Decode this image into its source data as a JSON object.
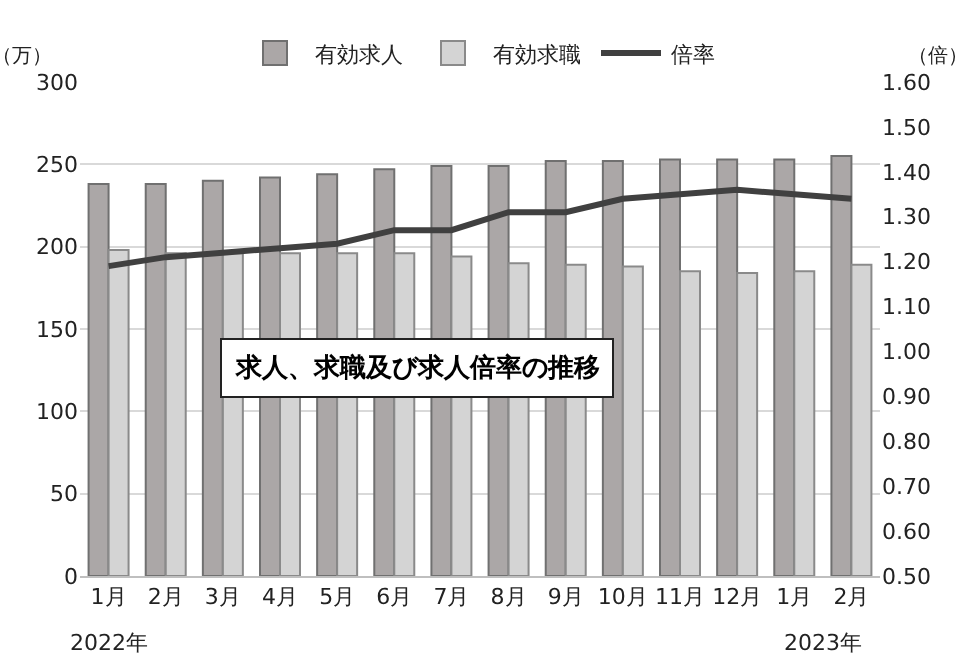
{
  "chart_data": {
    "type": "bar",
    "title": "求人、求職及び求人倍率の推移",
    "ylabel": "（万）",
    "y2label": "（倍）",
    "categories": [
      "1月",
      "2月",
      "3月",
      "4月",
      "5月",
      "6月",
      "7月",
      "8月",
      "9月",
      "10月",
      "11月",
      "12月",
      "1月",
      "2月"
    ],
    "series": [
      {
        "name": "有効求人",
        "color": "#aba7a7",
        "values": [
          238,
          238,
          240,
          242,
          244,
          247,
          249,
          249,
          252,
          252,
          253,
          253,
          253,
          255
        ]
      },
      {
        "name": "有効求職",
        "color": "#d4d4d4",
        "values": [
          198,
          196,
          196,
          196,
          196,
          196,
          194,
          190,
          189,
          188,
          185,
          184,
          185,
          189
        ]
      },
      {
        "name": "倍率",
        "type": "line",
        "axis": "y2",
        "color": "#404040",
        "values": [
          1.19,
          1.21,
          1.22,
          1.23,
          1.24,
          1.27,
          1.27,
          1.31,
          1.31,
          1.34,
          1.35,
          1.36,
          1.35,
          1.34
        ]
      }
    ],
    "ylim": [
      0,
      300
    ],
    "yticks": [
      0,
      50,
      100,
      150,
      200,
      250,
      300
    ],
    "y2lim": [
      0.5,
      1.6
    ],
    "y2ticks": [
      {
        "value": 0.5,
        "label": "0.50"
      },
      {
        "value": 0.6,
        "label": "0.60"
      },
      {
        "value": 0.7,
        "label": "0.70"
      },
      {
        "value": 0.8,
        "label": "0.80"
      },
      {
        "value": 0.9,
        "label": "0.90"
      },
      {
        "value": 1.0,
        "label": "1.00"
      },
      {
        "value": 1.1,
        "label": "1.10"
      },
      {
        "value": 1.2,
        "label": "1.20"
      },
      {
        "value": 1.3,
        "label": "1.30"
      },
      {
        "value": 1.4,
        "label": "1.40"
      },
      {
        "value": 1.5,
        "label": "1.50"
      },
      {
        "value": 1.6,
        "label": "1.60"
      }
    ],
    "annotations": [
      "2022年",
      "2023年"
    ],
    "grid": "y",
    "legend": "top",
    "marker": "none",
    "line_style": "solid"
  }
}
